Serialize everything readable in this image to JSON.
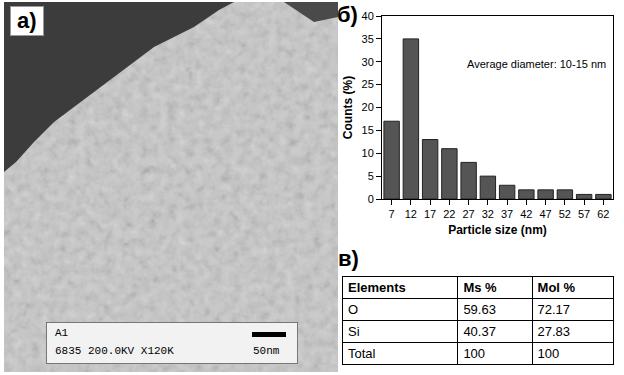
{
  "image_panel": {
    "label": "a)",
    "info": [
      "A1",
      "6835 200.0KV X120K"
    ],
    "scale_bar": "50nm"
  },
  "chart_data": {
    "type": "bar",
    "label": "б)",
    "annotation": "Average diameter: 10-15 nm",
    "xlabel": "Particle size (nm)",
    "ylabel": "Counts (%)",
    "categories": [
      "7",
      "12",
      "17",
      "22",
      "27",
      "32",
      "37",
      "42",
      "47",
      "52",
      "57",
      "62"
    ],
    "values": [
      17,
      35,
      13,
      11,
      8,
      5,
      3,
      2,
      2,
      2,
      1,
      1
    ],
    "color": "#555555",
    "ylim": [
      0,
      40
    ],
    "yticks": [
      0,
      5,
      10,
      15,
      20,
      25,
      30,
      35,
      40
    ],
    "grid": false
  },
  "table": {
    "label": "в)",
    "header": [
      "Elements",
      "Ms %",
      "Mol %"
    ],
    "rows": [
      [
        "O",
        "59.63",
        "72.17"
      ],
      [
        "Si",
        "40.37",
        "27.83"
      ],
      [
        "Total",
        "100",
        "100"
      ]
    ]
  }
}
